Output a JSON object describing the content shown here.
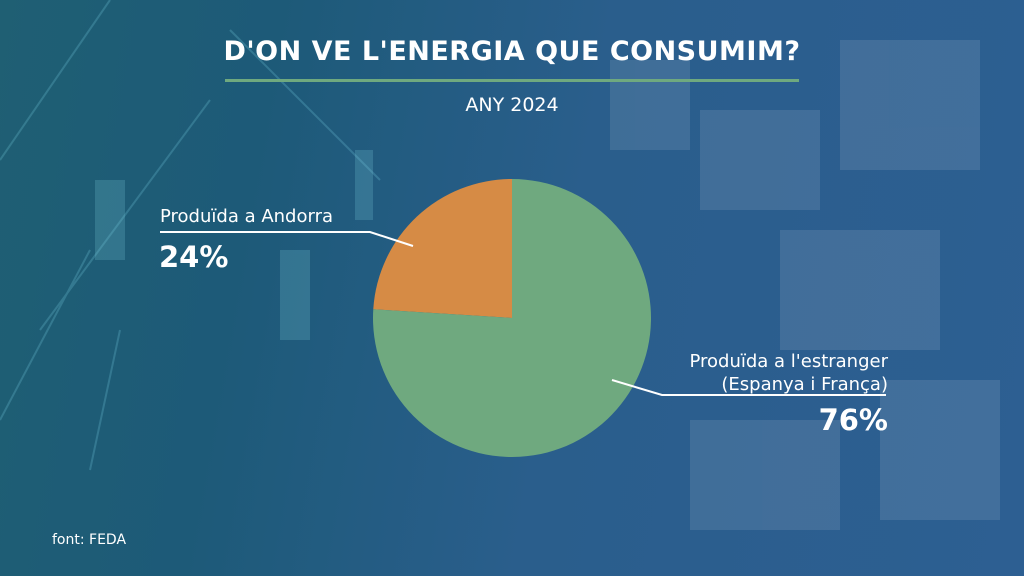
{
  "header": {
    "title": "D'ON VE L'ENERGIA QUE CONSUMIM?",
    "subtitle": "ANY 2024"
  },
  "footer": {
    "source": "font: FEDA"
  },
  "colors": {
    "accent_rule": "#6fa97f",
    "slice_abroad": "#6fa97f",
    "slice_andorra": "#d68b45"
  },
  "chart_data": {
    "type": "pie",
    "title": "D'ON VE L'ENERGIA QUE CONSUMIM?",
    "subtitle": "ANY 2024",
    "slices": [
      {
        "label": "Produïda a Andorra",
        "value": 24,
        "value_label": "24%",
        "color": "#d68b45"
      },
      {
        "label_line1": "Produïda a l'estranger",
        "label_line2": "(Espanya i França)",
        "value": 76,
        "value_label": "76%",
        "color": "#6fa97f"
      }
    ]
  }
}
